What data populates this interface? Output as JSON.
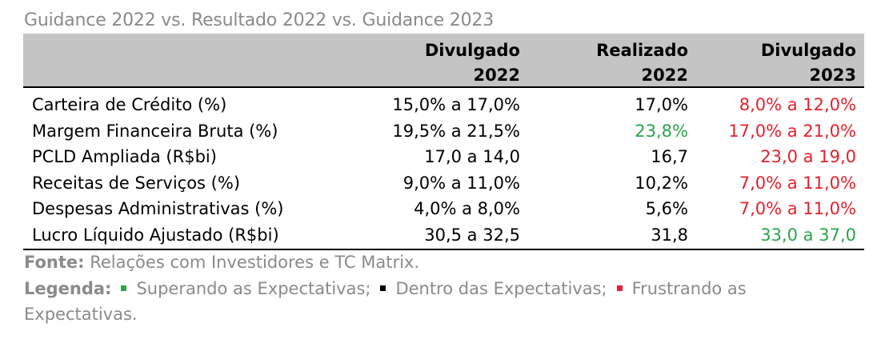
{
  "title": "Guidance 2022 vs. Resultado 2022 vs. Guidance 2023",
  "header": {
    "col1": [
      "Divulgado",
      "2022"
    ],
    "col2": [
      "Realizado",
      "2022"
    ],
    "col3": [
      "Divulgado",
      "2023"
    ]
  },
  "colors": {
    "green": "#2aa54a",
    "red": "#e8202a",
    "black": "#000000",
    "gray": "#8a8a8a"
  },
  "rows": [
    {
      "label": "Carteira de Crédito (%)",
      "v1": "15,0% a 17,0%",
      "v2": "17,0%",
      "v2_color": "black",
      "v3": "8,0% a 12,0%",
      "v3_color": "red"
    },
    {
      "label": "Margem Financeira Bruta (%)",
      "v1": "19,5% a 21,5%",
      "v2": "23,8%",
      "v2_color": "green",
      "v3": "17,0% a 21,0%",
      "v3_color": "red"
    },
    {
      "label": "PCLD Ampliada (R$bi)",
      "v1": "17,0 a 14,0",
      "v2": "16,7",
      "v2_color": "black",
      "v3": "23,0 a 19,0",
      "v3_color": "red"
    },
    {
      "label": "Receitas de Serviços (%)",
      "v1": "9,0% a 11,0%",
      "v2": "10,2%",
      "v2_color": "black",
      "v3": "7,0% a 11,0%",
      "v3_color": "red"
    },
    {
      "label": "Despesas Administrativas (%)",
      "v1": "4,0% a 8,0%",
      "v2": "5,6%",
      "v2_color": "black",
      "v3": "7,0% a 11,0%",
      "v3_color": "red"
    },
    {
      "label": "Lucro Líquido Ajustado (R$bi)",
      "v1": "30,5 a 32,5",
      "v2": "31,8",
      "v2_color": "black",
      "v3": "33,0 a 37,0",
      "v3_color": "green"
    }
  ],
  "footer": {
    "source_label": "Fonte:",
    "source_text": " Relações com Investidores e TC Matrix.",
    "legend_label": "Legenda:",
    "legend_items": [
      {
        "text": "Superando as Expectativas;",
        "color": "green"
      },
      {
        "text": "Dentro das Expectativas;",
        "color": "black"
      },
      {
        "text": "Frustrando as",
        "color": "red"
      }
    ],
    "legend_tail": "Expectativas."
  }
}
